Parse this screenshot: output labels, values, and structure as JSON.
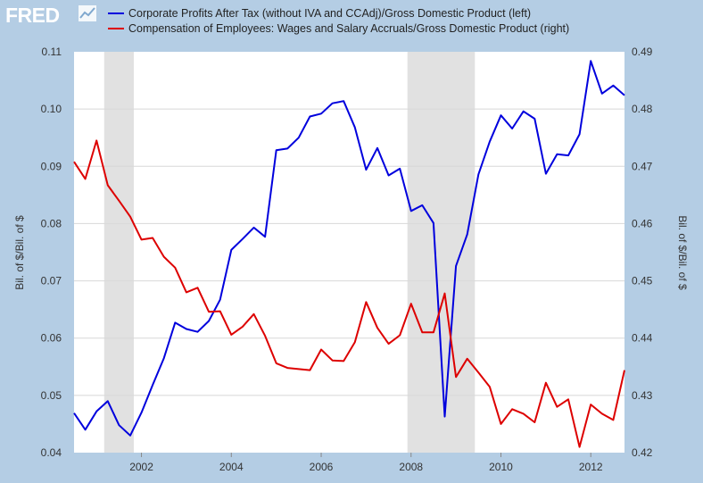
{
  "logo": {
    "text": "FRED"
  },
  "colors": {
    "background": "#b4cde4",
    "plot_bg": "#ffffff",
    "recession": "#e1e1e1",
    "series_left": "#0000dd",
    "series_right": "#dd0000"
  },
  "chart_data": {
    "type": "line",
    "legend_position": "top",
    "grid": true,
    "xlabel": "",
    "x_range": [
      2000.5,
      2012.75
    ],
    "x_ticks": [
      "2002",
      "2004",
      "2006",
      "2008",
      "2010",
      "2012"
    ],
    "y_left": {
      "label": "Bil. of $/Bil. of $",
      "range": [
        0.04,
        0.11
      ],
      "ticks": [
        "0.04",
        "0.05",
        "0.06",
        "0.07",
        "0.08",
        "0.09",
        "0.10",
        "0.11"
      ]
    },
    "y_right": {
      "label": "Bil. of $/Bil. of $",
      "range": [
        0.42,
        0.49
      ],
      "ticks": [
        "0.42",
        "0.43",
        "0.44",
        "0.45",
        "0.46",
        "0.47",
        "0.48",
        "0.49"
      ]
    },
    "recessions": [
      [
        2001.17,
        2001.83
      ],
      [
        2007.92,
        2009.42
      ]
    ],
    "x": [
      2000.5,
      2000.75,
      2001.0,
      2001.25,
      2001.5,
      2001.75,
      2002.0,
      2002.25,
      2002.5,
      2002.75,
      2003.0,
      2003.25,
      2003.5,
      2003.75,
      2004.0,
      2004.25,
      2004.5,
      2004.75,
      2005.0,
      2005.25,
      2005.5,
      2005.75,
      2006.0,
      2006.25,
      2006.5,
      2006.75,
      2007.0,
      2007.25,
      2007.5,
      2007.75,
      2008.0,
      2008.25,
      2008.5,
      2008.75,
      2009.0,
      2009.25,
      2009.5,
      2009.75,
      2010.0,
      2010.25,
      2010.5,
      2010.75,
      2011.0,
      2011.25,
      2011.5,
      2011.75,
      2012.0,
      2012.25,
      2012.5,
      2012.75
    ],
    "series": [
      {
        "name": "Corporate Profits After Tax (without IVA and CCAdj)/Gross Domestic Product (left)",
        "axis": "left",
        "values": [
          0.0469,
          0.044,
          0.0472,
          0.049,
          0.0448,
          0.043,
          0.047,
          0.0518,
          0.0565,
          0.0627,
          0.0616,
          0.0611,
          0.063,
          0.0667,
          0.0754,
          0.0773,
          0.0793,
          0.0777,
          0.0928,
          0.0931,
          0.095,
          0.0987,
          0.0992,
          0.101,
          0.1014,
          0.0968,
          0.0894,
          0.0932,
          0.0884,
          0.0896,
          0.0822,
          0.0832,
          0.0801,
          0.0463,
          0.0726,
          0.0781,
          0.0886,
          0.0943,
          0.0989,
          0.0966,
          0.0996,
          0.0983,
          0.0887,
          0.0921,
          0.0919,
          0.0956,
          0.1084,
          0.1027,
          0.1041,
          0.1024
        ]
      },
      {
        "name": "Compensation of Employees: Wages and Salary Accruals/Gross Domestic Product (right)",
        "axis": "right",
        "values": [
          0.4708,
          0.4678,
          0.4745,
          0.4667,
          0.464,
          0.4612,
          0.4572,
          0.4575,
          0.4542,
          0.4523,
          0.448,
          0.4488,
          0.4446,
          0.4447,
          0.4406,
          0.442,
          0.4442,
          0.4404,
          0.4356,
          0.4348,
          0.4346,
          0.4344,
          0.438,
          0.4361,
          0.436,
          0.4393,
          0.4463,
          0.4418,
          0.439,
          0.4405,
          0.446,
          0.441,
          0.441,
          0.4478,
          0.4332,
          0.4364,
          0.434,
          0.4315,
          0.425,
          0.4276,
          0.4268,
          0.4253,
          0.4322,
          0.428,
          0.4293,
          0.421,
          0.4284,
          0.4268,
          0.4257,
          0.4344
        ]
      }
    ]
  }
}
